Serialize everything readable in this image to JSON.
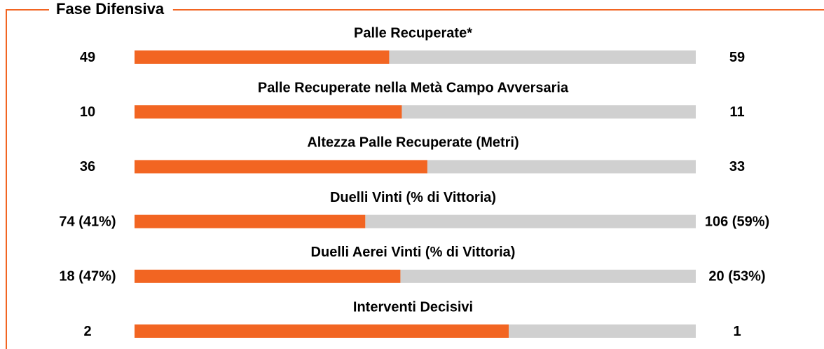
{
  "chart_data": {
    "type": "comparison",
    "title": "Fase Difensiva",
    "categories": [
      "Palle Recuperate*",
      "Palle Recuperate nella Metà Campo Avversaria",
      "Altezza Palle Recuperate (Metri)",
      "Duelli Vinti (% di Vittoria)",
      "Duelli Aerei Vinti (% di Vittoria)",
      "Interventi Decisivi"
    ],
    "series": [
      {
        "color": "#f26522",
        "values": [
          49,
          10,
          36,
          74,
          18,
          2
        ],
        "value_labels": [
          "49",
          "10",
          "36",
          "74 (41%)",
          "18 (47%)",
          "2"
        ]
      },
      {
        "color": "#d0d0d0",
        "values": [
          59,
          11,
          33,
          106,
          20,
          1
        ],
        "value_labels": [
          "59",
          "11",
          "33",
          "106 (59%)",
          "20 (53%)",
          "1"
        ]
      }
    ],
    "border_color": "#f26522"
  }
}
